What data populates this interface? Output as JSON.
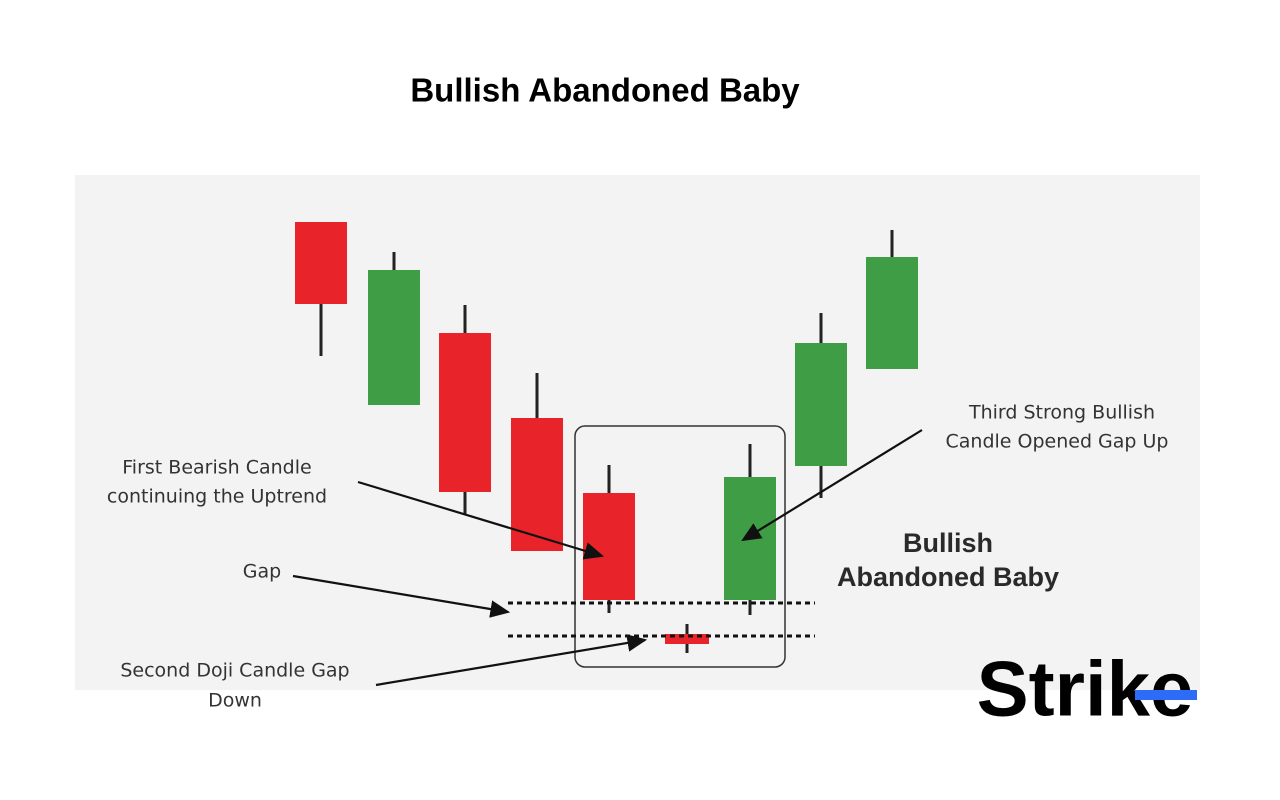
{
  "title": "Bullish Abandoned Baby",
  "annotations": {
    "first": [
      "First Bearish Candle",
      "continuing the Uptrend"
    ],
    "gap": [
      "Gap"
    ],
    "second": [
      "Second Doji Candle Gap",
      "Down"
    ],
    "third": [
      "Third Strong Bullish",
      "Candle Opened Gap Up"
    ]
  },
  "pattern_label": [
    "Bullish",
    "Abandoned Baby"
  ],
  "logo": "Strike"
}
